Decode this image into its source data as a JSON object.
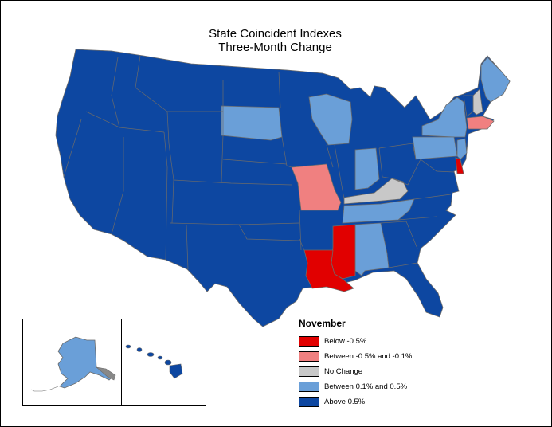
{
  "title": {
    "line1": "State Coincident Indexes",
    "line2": "Three-Month Change"
  },
  "legend": {
    "title": "November",
    "items": [
      {
        "label": "Below -0.5%",
        "color": "#e10000"
      },
      {
        "label": "Between -0.5% and -0.1%",
        "color": "#f08080"
      },
      {
        "label": "No Change",
        "color": "#c8c8c8"
      },
      {
        "label": "Between 0.1% and 0.5%",
        "color": "#6a9fd8"
      },
      {
        "label": "Above 0.5%",
        "color": "#0d47a1"
      }
    ]
  },
  "colors": {
    "above_0_5": "#0d47a1",
    "between_0_1_0_5": "#6a9fd8",
    "no_change": "#c8c8c8",
    "between_neg0_5_neg0_1": "#f08080",
    "below_neg0_5": "#e10000",
    "borders": "#6b6b6b"
  },
  "states": {
    "MS": "below_neg0_5",
    "LA": "below_neg0_5",
    "DE": "below_neg0_5",
    "MO": "between_neg0_5_neg0_1",
    "MA": "between_neg0_5_neg0_1",
    "KY": "no_change",
    "NH": "no_change",
    "SD": "between_0_1_0_5",
    "WI": "between_0_1_0_5",
    "IN": "between_0_1_0_5",
    "TN": "between_0_1_0_5",
    "AL": "between_0_1_0_5",
    "NY": "between_0_1_0_5",
    "PA": "between_0_1_0_5",
    "ME": "between_0_1_0_5",
    "NJ": "between_0_1_0_5",
    "AK": "between_0_1_0_5",
    "VT": "above_0_5",
    "HI": "above_0_5",
    "other": "above_0_5"
  }
}
